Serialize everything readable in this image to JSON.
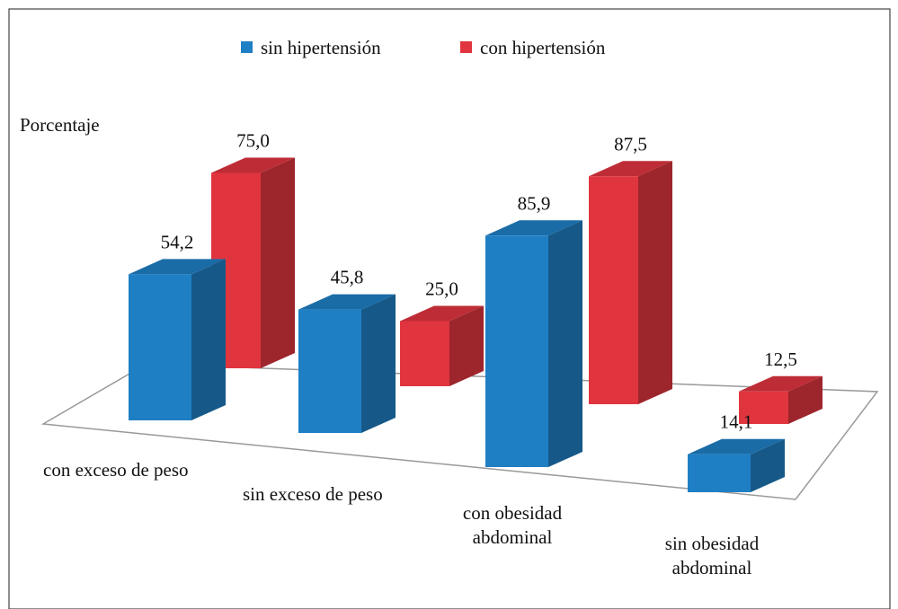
{
  "chart_data": {
    "type": "bar3d",
    "y_label": "Porcentaje",
    "categories": [
      "con exceso de peso",
      "sin exceso de peso",
      "con obesidad abdominal",
      "sin obesidad abdominal"
    ],
    "series": [
      {
        "name": "sin hipertensión",
        "color": "#1f7fc4",
        "values": [
          54.2,
          45.8,
          85.9,
          14.1
        ],
        "value_labels": [
          "54,2",
          "45,8",
          "85,9",
          "14,1"
        ]
      },
      {
        "name": "con hipertensión",
        "color": "#e0353f",
        "values": [
          75.0,
          25.0,
          87.5,
          12.5
        ],
        "value_labels": [
          "75,0",
          "25,0",
          "87,5",
          "12,5"
        ]
      }
    ]
  }
}
